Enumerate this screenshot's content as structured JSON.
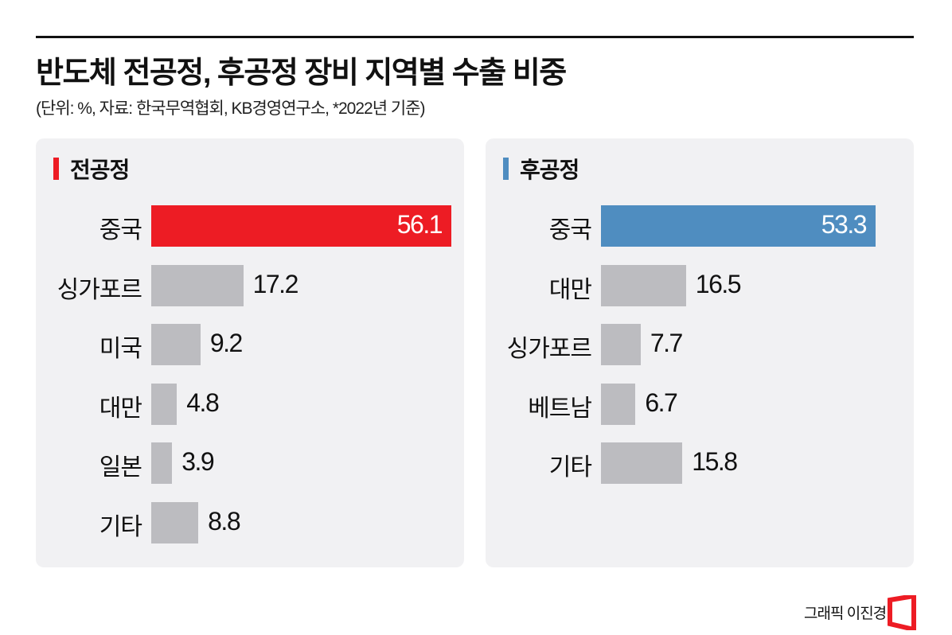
{
  "title": "반도체 전공정, 후공정 장비 지역별 수출 비중",
  "subtitle": "(단위: %,  자료: 한국무역협회, KB경영연구소,  *2022년 기준)",
  "credit": "그래픽 이진경",
  "chart_data": [
    {
      "type": "bar",
      "orientation": "horizontal",
      "title": "전공정",
      "accent": "#ed1c24",
      "other_color": "#bcbcc0",
      "categories": [
        "중국",
        "싱가포르",
        "미국",
        "대만",
        "일본",
        "기타"
      ],
      "values": [
        56.1,
        17.2,
        9.2,
        4.8,
        3.9,
        8.8
      ],
      "value_labels": [
        "56.1",
        "17.2",
        "9.2",
        "4.8",
        "3.9",
        "8.8"
      ]
    },
    {
      "type": "bar",
      "orientation": "horizontal",
      "title": "후공정",
      "accent": "#4f8dc0",
      "other_color": "#bcbcc0",
      "categories": [
        "중국",
        "대만",
        "싱가포르",
        "베트남",
        "기타"
      ],
      "values": [
        53.3,
        16.5,
        7.7,
        6.7,
        15.8
      ],
      "value_labels": [
        "53.3",
        "16.5",
        "7.7",
        "6.7",
        "15.8"
      ]
    }
  ]
}
